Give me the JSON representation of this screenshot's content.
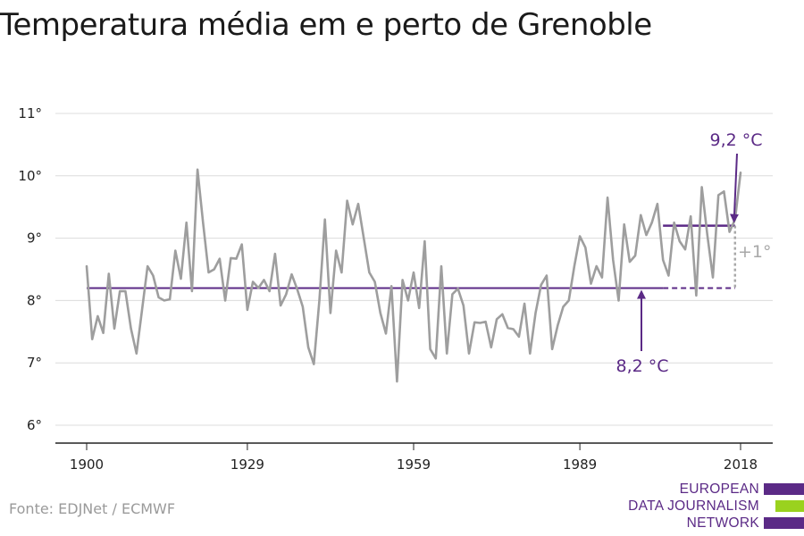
{
  "title": "Temperatura média em e perto de Grenoble",
  "source": "Fonte: EDJNet / ECMWF",
  "logo": {
    "lines": [
      "EUROPEAN",
      "DATA JOURNALISM",
      "NETWORK"
    ],
    "colors": [
      "#5b2a86",
      "#9ad21e",
      "#5b2a86"
    ]
  },
  "colors": {
    "series": "#9e9e9e",
    "reference": "#5b2a86",
    "annotation": "#5b2a86",
    "difference": "#a8a8a8",
    "grid": "#dcdcdc",
    "axis": "#222222"
  },
  "chart_data": {
    "type": "line",
    "title": "Temperatura média em e perto de Grenoble",
    "xlabel": "",
    "ylabel": "",
    "xlim": [
      1900,
      2018
    ],
    "ylim": [
      6,
      11
    ],
    "grid": true,
    "y_ticks": [
      {
        "value": 6,
        "label": "6°"
      },
      {
        "value": 7,
        "label": "7°"
      },
      {
        "value": 8,
        "label": "8°"
      },
      {
        "value": 9,
        "label": "9°"
      },
      {
        "value": 10,
        "label": "10°"
      },
      {
        "value": 11,
        "label": "11°"
      }
    ],
    "x_ticks": [
      {
        "value": 1900,
        "label": "1900"
      },
      {
        "value": 1929,
        "label": "1929"
      },
      {
        "value": 1959,
        "label": "1959"
      },
      {
        "value": 1989,
        "label": "1989"
      },
      {
        "value": 2018,
        "label": "2018"
      }
    ],
    "series": [
      {
        "x": [
          1900,
          1901,
          1902,
          1903,
          1904,
          1905,
          1906,
          1907,
          1908,
          1909,
          1910,
          1911,
          1912,
          1913,
          1914,
          1915,
          1916,
          1917,
          1918,
          1919,
          1920,
          1921,
          1922,
          1923,
          1924,
          1925,
          1926,
          1927,
          1928,
          1929,
          1930,
          1931,
          1932,
          1933,
          1934,
          1935,
          1936,
          1937,
          1938,
          1939,
          1940,
          1941,
          1942,
          1943,
          1944,
          1945,
          1946,
          1947,
          1948,
          1949,
          1950,
          1951,
          1952,
          1953,
          1954,
          1955,
          1956,
          1957,
          1958,
          1959,
          1960,
          1961,
          1962,
          1963,
          1964,
          1965,
          1966,
          1967,
          1968,
          1969,
          1970,
          1971,
          1972,
          1973,
          1974,
          1975,
          1976,
          1977,
          1978,
          1979,
          1980,
          1981,
          1982,
          1983,
          1984,
          1985,
          1986,
          1987,
          1988,
          1989,
          1990,
          1991,
          1992,
          1993,
          1994,
          1995,
          1996,
          1997,
          1998,
          1999,
          2000,
          2001,
          2002,
          2003,
          2004,
          2005,
          2006,
          2007,
          2008,
          2009,
          2010,
          2011,
          2012,
          2013,
          2014,
          2015,
          2016,
          2017,
          2018
        ],
        "values": [
          8.55,
          7.38,
          7.75,
          7.48,
          8.43,
          7.55,
          8.15,
          8.15,
          7.55,
          7.15,
          7.85,
          8.55,
          8.4,
          8.05,
          8.0,
          8.02,
          8.8,
          8.35,
          9.25,
          8.15,
          10.1,
          9.25,
          8.45,
          8.5,
          8.67,
          8.0,
          8.68,
          8.67,
          8.9,
          7.85,
          8.3,
          8.2,
          8.33,
          8.15,
          8.75,
          7.92,
          8.1,
          8.42,
          8.18,
          7.9,
          7.25,
          6.98,
          8.0,
          9.3,
          7.8,
          8.8,
          8.45,
          9.6,
          9.22,
          9.55,
          9.0,
          8.45,
          8.3,
          7.8,
          7.47,
          8.23,
          6.7,
          8.33,
          8.0,
          8.45,
          7.88,
          8.95,
          7.22,
          7.07,
          8.55,
          7.15,
          8.1,
          8.19,
          7.92,
          7.15,
          7.65,
          7.64,
          7.66,
          7.25,
          7.7,
          7.78,
          7.56,
          7.54,
          7.42,
          7.95,
          7.15,
          7.8,
          8.25,
          8.4,
          7.22,
          7.6,
          7.9,
          8.0,
          8.55,
          9.03,
          8.85,
          8.27,
          8.55,
          8.37,
          9.65,
          8.65,
          8.0,
          9.22,
          8.62,
          8.72,
          9.37,
          9.05,
          9.25,
          9.55,
          8.65,
          8.4,
          9.25,
          8.95,
          8.82,
          9.35,
          8.08,
          9.82,
          9.05,
          8.37,
          9.69,
          9.75,
          9.1,
          9.3,
          10.05
        ]
      }
    ],
    "reference_lines": [
      {
        "value": 8.2,
        "x_start": 1900,
        "x_solid_end": 2004,
        "x_end": 2017,
        "label": "8,2 °C"
      },
      {
        "value": 9.2,
        "x_start": 2004,
        "x_end": 2017,
        "label": "9,2 °C"
      }
    ],
    "difference_label": "+1°"
  }
}
